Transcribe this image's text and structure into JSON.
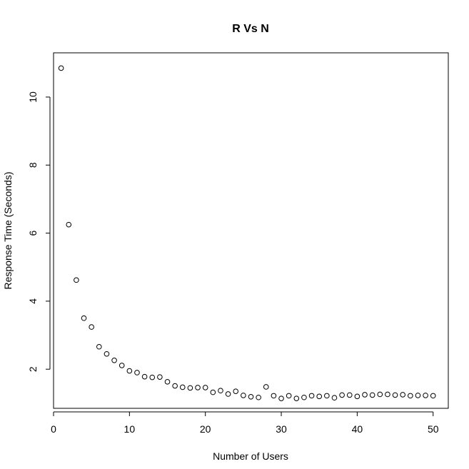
{
  "chart_data": {
    "type": "scatter",
    "title": "R Vs N",
    "xlabel": "Number of Users",
    "ylabel": "Response Time (Seconds)",
    "xlim": [
      0,
      52
    ],
    "ylim": [
      0.85,
      11.3
    ],
    "xticks": [
      0,
      10,
      20,
      30,
      40,
      50
    ],
    "yticks": [
      2,
      4,
      6,
      8,
      10
    ],
    "grid": false,
    "marker": "open-circle",
    "series": [
      {
        "x": [
          1,
          2,
          3,
          4,
          5,
          6,
          7,
          8,
          9,
          10,
          11,
          12,
          13,
          14,
          15,
          16,
          17,
          18,
          19,
          20,
          21,
          22,
          23,
          24,
          25,
          26,
          27,
          28,
          29,
          30,
          31,
          32,
          33,
          34,
          35,
          36,
          37,
          38,
          39,
          40,
          41,
          42,
          43,
          44,
          45,
          46,
          47,
          48,
          49,
          50
        ],
        "y": [
          10.85,
          6.25,
          4.62,
          3.5,
          3.24,
          2.66,
          2.45,
          2.26,
          2.11,
          1.95,
          1.9,
          1.78,
          1.76,
          1.77,
          1.63,
          1.51,
          1.47,
          1.45,
          1.46,
          1.46,
          1.32,
          1.37,
          1.27,
          1.35,
          1.23,
          1.19,
          1.17,
          1.48,
          1.22,
          1.14,
          1.22,
          1.14,
          1.17,
          1.22,
          1.2,
          1.22,
          1.16,
          1.24,
          1.24,
          1.2,
          1.25,
          1.24,
          1.26,
          1.26,
          1.24,
          1.25,
          1.22,
          1.23,
          1.23,
          1.22
        ]
      }
    ]
  }
}
